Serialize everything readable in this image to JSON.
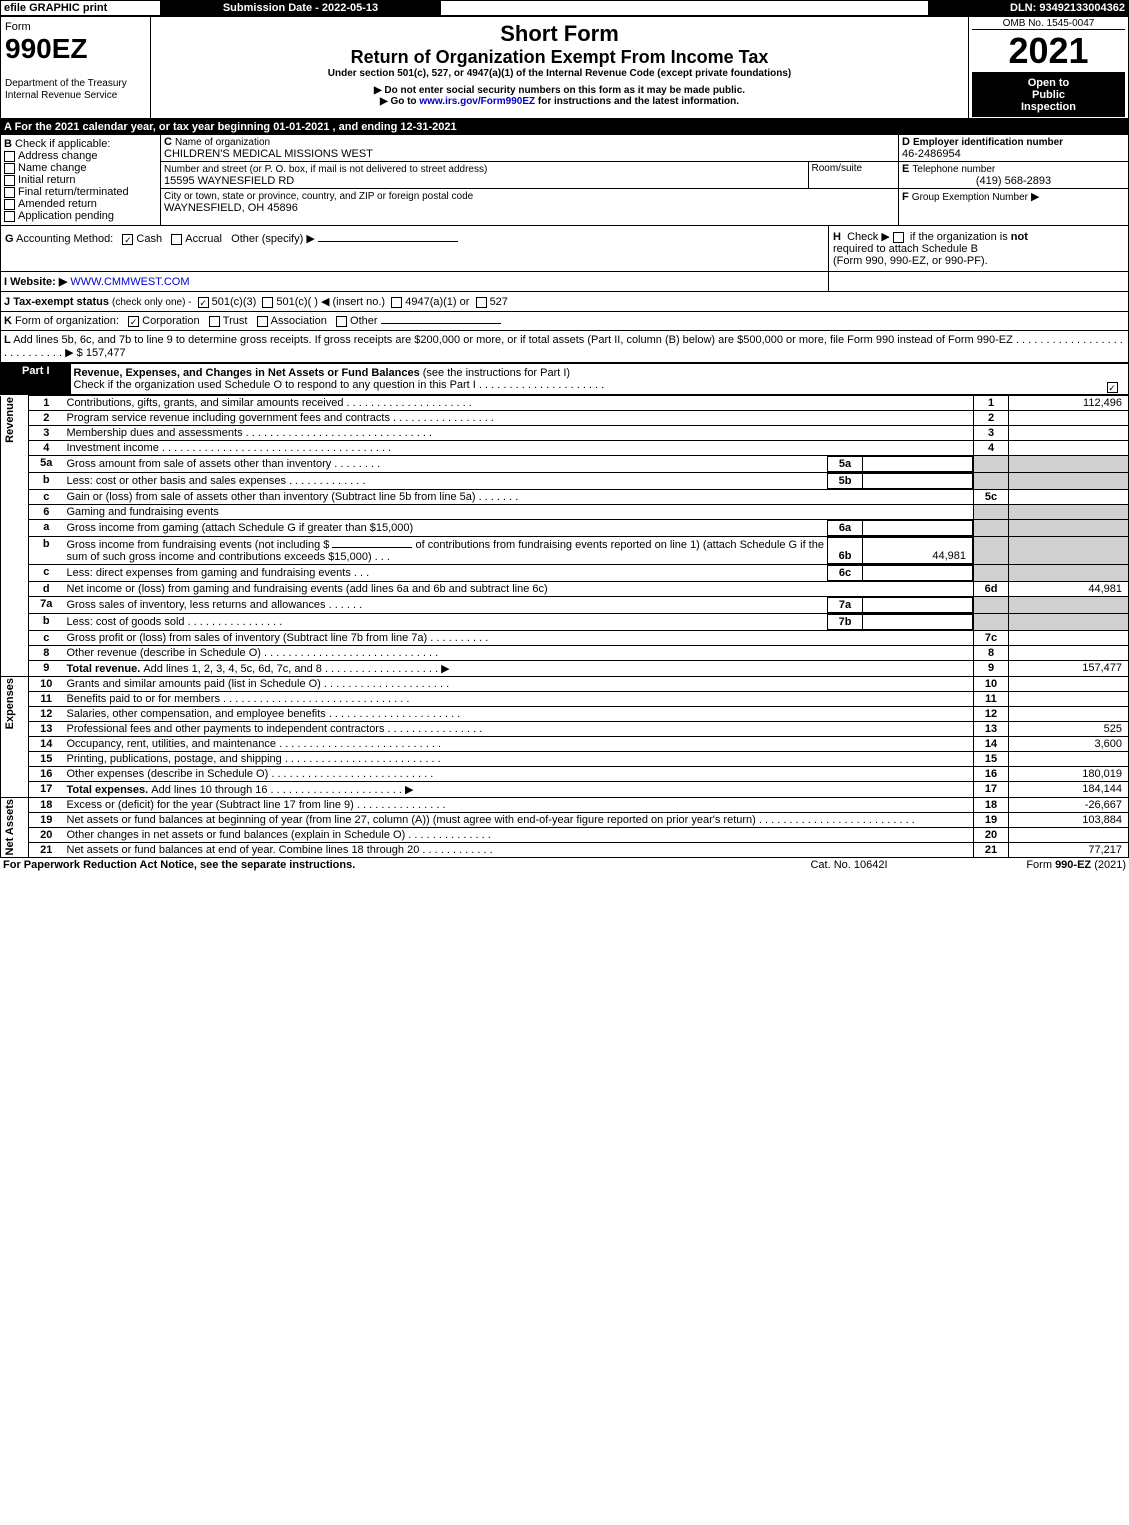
{
  "topbar": {
    "efile": "efile GRAPHIC print",
    "submission": "Submission Date - 2022-05-13",
    "dln": "DLN: 93492133004362"
  },
  "header": {
    "form_label": "Form",
    "form_no": "990EZ",
    "dept": "Department of the Treasury",
    "irs": "Internal Revenue Service",
    "short_form": "Short Form",
    "title": "Return of Organization Exempt From Income Tax",
    "subtitle": "Under section 501(c), 527, or 4947(a)(1) of the Internal Revenue Code (except private foundations)",
    "note1": "▶ Do not enter social security numbers on this form as it may be made public.",
    "note2": "▶ Go to www.irs.gov/Form990EZ for instructions and the latest information.",
    "link": "www.irs.gov/Form990EZ",
    "omb": "OMB No. 1545-0047",
    "year": "2021",
    "inspection1": "Open to",
    "inspection2": "Public",
    "inspection3": "Inspection"
  },
  "section_a": "A  For the 2021 calendar year, or tax year beginning 01-01-2021 , and ending 12-31-2021",
  "section_b": {
    "label": "B",
    "check_label": "Check if applicable:",
    "opts": [
      "Address change",
      "Name change",
      "Initial return",
      "Final return/terminated",
      "Amended return",
      "Application pending"
    ]
  },
  "section_c": {
    "c_label": "C",
    "name_label": "Name of organization",
    "name": "CHILDREN'S MEDICAL MISSIONS WEST",
    "street_label": "Number and street (or P. O. box, if mail is not delivered to street address)",
    "room_label": "Room/suite",
    "street": "15595 WAYNESFIELD RD",
    "city_label": "City or town, state or province, country, and ZIP or foreign postal code",
    "city": "WAYNESFIELD, OH  45896"
  },
  "section_d": {
    "d_label": "D",
    "ein_label": "Employer identification number",
    "ein": "46-2486954",
    "e_label": "E",
    "tel_label": "Telephone number",
    "tel": "(419) 568-2893",
    "f_label": "F",
    "group_label": "Group Exemption Number",
    "arrow": "▶"
  },
  "section_g": {
    "g_label": "G",
    "acct_label": "Accounting Method:",
    "cash": "Cash",
    "accrual": "Accrual",
    "other": "Other (specify) ▶"
  },
  "section_h": {
    "h_label": "H",
    "text1": "Check ▶",
    "text2": "if the organization is ",
    "not": "not",
    "text3": "required to attach Schedule B",
    "text4": "(Form 990, 990-EZ, or 990-PF)."
  },
  "section_i": {
    "i_label": "I",
    "web_label": "Website: ▶",
    "web": "WWW.CMMWEST.COM"
  },
  "section_j": {
    "j_label": "J",
    "text": "Tax-exempt status",
    "sub": "(check only one) -",
    "o1": "501(c)(3)",
    "o2": "501(c)(  ) ◀ (insert no.)",
    "o3": "4947(a)(1) or",
    "o4": "527"
  },
  "section_k": {
    "k_label": "K",
    "text": "Form of organization:",
    "o1": "Corporation",
    "o2": "Trust",
    "o3": "Association",
    "o4": "Other"
  },
  "section_l": {
    "l_label": "L",
    "text1": "Add lines 5b, 6c, and 7b to line 9 to determine gross receipts. If gross receipts are $200,000 or more, or if total assets (Part II, column (B) below) are $500,000 or more, file Form 990 instead of Form 990-EZ",
    "dots": ". . . . . . . . . . . . . . . . . . . . . . . . . . . . ▶",
    "amount": "$ 157,477"
  },
  "part1": {
    "label": "Part I",
    "title": "Revenue, Expenses, and Changes in Net Assets or Fund Balances",
    "sub": "(see the instructions for Part I)",
    "check_line": "Check if the organization used Schedule O to respond to any question in this Part I",
    "dots": ". . . . . . . . . . . . . . . . . . . . ."
  },
  "sections": {
    "revenue": "Revenue",
    "expenses": "Expenses",
    "netassets": "Net Assets"
  },
  "lines": {
    "1": {
      "no": "1",
      "text": "Contributions, gifts, grants, and similar amounts received",
      "dots": ". . . . . . . . . . . . . . . . . . . . .",
      "box": "1",
      "amt": "112,496"
    },
    "2": {
      "no": "2",
      "text": "Program service revenue including government fees and contracts",
      "dots": ". . . . . . . . . . . . . . . . .",
      "box": "2",
      "amt": ""
    },
    "3": {
      "no": "3",
      "text": "Membership dues and assessments",
      "dots": ". . . . . . . . . . . . . . . . . . . . . . . . . . . . . . .",
      "box": "3",
      "amt": ""
    },
    "4": {
      "no": "4",
      "text": "Investment income",
      "dots": ". . . . . . . . . . . . . . . . . . . . . . . . . . . . . . . . . . . . . .",
      "box": "4",
      "amt": ""
    },
    "5a": {
      "no": "5a",
      "text": "Gross amount from sale of assets other than inventory",
      "dots": ". . . . . . . .",
      "ibox": "5a",
      "iamt": ""
    },
    "5b": {
      "no": "b",
      "text": "Less: cost or other basis and sales expenses",
      "dots": ". . . . . . . . . . . . .",
      "ibox": "5b",
      "iamt": ""
    },
    "5c": {
      "no": "c",
      "text": "Gain or (loss) from sale of assets other than inventory (Subtract line 5b from line 5a)",
      "dots": ". . . . . . .",
      "box": "5c",
      "amt": ""
    },
    "6": {
      "no": "6",
      "text": "Gaming and fundraising events"
    },
    "6a": {
      "no": "a",
      "text": "Gross income from gaming (attach Schedule G if greater than $15,000)",
      "ibox": "6a",
      "iamt": ""
    },
    "6b": {
      "no": "b",
      "text1": "Gross income from fundraising events (not including $",
      "text2": "of contributions from fundraising events reported on line 1) (attach Schedule G if the sum of such gross income and contributions exceeds $15,000)",
      "dots": ". .  .",
      "ibox": "6b",
      "iamt": "44,981"
    },
    "6c": {
      "no": "c",
      "text": "Less: direct expenses from gaming and fundraising events",
      "dots": ". .  .",
      "ibox": "6c",
      "iamt": ""
    },
    "6d": {
      "no": "d",
      "text": "Net income or (loss) from gaming and fundraising events (add lines 6a and 6b and subtract line 6c)",
      "box": "6d",
      "amt": "44,981"
    },
    "7a": {
      "no": "7a",
      "text": "Gross sales of inventory, less returns and allowances",
      "dots": ". . . . . .",
      "ibox": "7a",
      "iamt": ""
    },
    "7b": {
      "no": "b",
      "text": "Less: cost of goods sold",
      "dots": ". . . . . . . . . . . . . . . .",
      "ibox": "7b",
      "iamt": ""
    },
    "7c": {
      "no": "c",
      "text": "Gross profit or (loss) from sales of inventory (Subtract line 7b from line 7a)",
      "dots": ". . . . . . . . . .",
      "box": "7c",
      "amt": ""
    },
    "8": {
      "no": "8",
      "text": "Other revenue (describe in Schedule O)",
      "dots": ". . . . . . . . . . . . . . . . . . . . . . . . . . . . .",
      "box": "8",
      "amt": ""
    },
    "9": {
      "no": "9",
      "text": "Total revenue. ",
      "text2": "Add lines 1, 2, 3, 4, 5c, 6d, 7c, and 8",
      "dots": ". . . . . . . . . . . . . . . . . . .  ▶",
      "box": "9",
      "amt": "157,477"
    },
    "10": {
      "no": "10",
      "text": "Grants and similar amounts paid (list in Schedule O)",
      "dots": ". . . . . . . . . . . . . . . . . . . . .",
      "box": "10",
      "amt": ""
    },
    "11": {
      "no": "11",
      "text": "Benefits paid to or for members",
      "dots": ". . . . . . . . . . . . . . . . . . . . . . . . . . . . . . .",
      "box": "11",
      "amt": ""
    },
    "12": {
      "no": "12",
      "text": "Salaries, other compensation, and employee benefits",
      "dots": ". . . . . . . . . . . . . . . . . . . . . .",
      "box": "12",
      "amt": ""
    },
    "13": {
      "no": "13",
      "text": "Professional fees and other payments to independent contractors",
      "dots": ". . . . . . . . . . . . . . . .",
      "box": "13",
      "amt": "525"
    },
    "14": {
      "no": "14",
      "text": "Occupancy, rent, utilities, and maintenance",
      "dots": ". . . . . . . . . . . . . . . . . . . . . . . . . . .",
      "box": "14",
      "amt": "3,600"
    },
    "15": {
      "no": "15",
      "text": "Printing, publications, postage, and shipping",
      "dots": ". . . . . . . . . . . . . . . . . . . . . . . . . .",
      "box": "15",
      "amt": ""
    },
    "16": {
      "no": "16",
      "text": "Other expenses (describe in Schedule O)",
      "dots": ". . . . . . . . . . . . . . . . . . . . . . . . . . .",
      "box": "16",
      "amt": "180,019"
    },
    "17": {
      "no": "17",
      "text": "Total expenses. ",
      "text2": "Add lines 10 through 16",
      "dots": ". . . . . . . . . . . . . . . . . . . . . .  ▶",
      "box": "17",
      "amt": "184,144"
    },
    "18": {
      "no": "18",
      "text": "Excess or (deficit) for the year (Subtract line 17 from line 9)",
      "dots": "  . . . . . . . . . . . . . . .",
      "box": "18",
      "amt": "-26,667"
    },
    "19": {
      "no": "19",
      "text": "Net assets or fund balances at beginning of year (from line 27, column (A)) (must agree with end-of-year figure reported on prior year's return)",
      "dots": ". . . . . . . . . . . . . . . . . . . . . . . . . .",
      "box": "19",
      "amt": "103,884"
    },
    "20": {
      "no": "20",
      "text": "Other changes in net assets or fund balances (explain in Schedule O)",
      "dots": ". . . . . . . . . . . . . .",
      "box": "20",
      "amt": ""
    },
    "21": {
      "no": "21",
      "text": "Net assets or fund balances at end of year. Combine lines 18 through 20",
      "dots": ". . . . . . . . . . . .",
      "box": "21",
      "amt": "77,217"
    }
  },
  "footer": {
    "left": "For Paperwork Reduction Act Notice, see the separate instructions.",
    "mid": "Cat. No. 10642I",
    "right": "Form 990-EZ (2021)"
  },
  "colors": {
    "black": "#000000",
    "white": "#ffffff",
    "gray": "#d0d0d0",
    "link": "#0000cc"
  }
}
